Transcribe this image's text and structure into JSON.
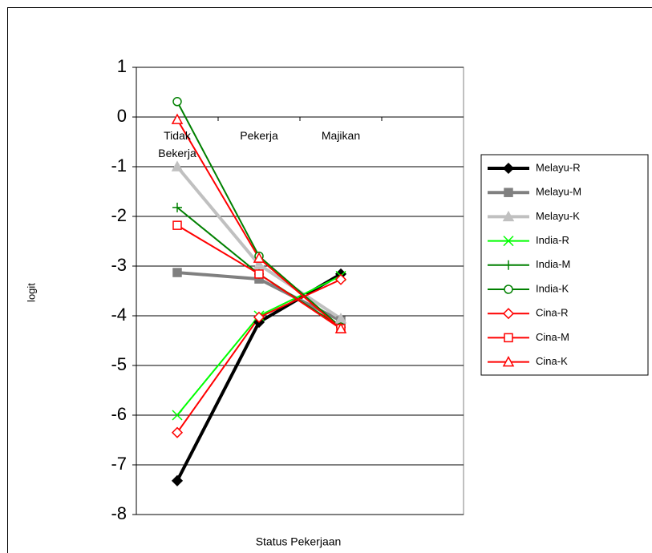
{
  "chart_data": {
    "type": "line",
    "x_label": "Status Pekerjaan",
    "y_label": "logit",
    "categories": [
      "Tidak Bekerja",
      "Pekerja",
      "Majikan",
      null
    ],
    "ylim": [
      -8,
      1
    ],
    "yticks": [
      -8,
      -7,
      -6,
      -5,
      -4,
      -3,
      -2,
      -1,
      0,
      1
    ],
    "grid": true,
    "legend": "right",
    "series": [
      {
        "name": "Melayu-R",
        "color": "#000000",
        "width": 4,
        "marker": "diamond",
        "marker_filled": true,
        "values": [
          -7.32,
          -4.13,
          -3.16,
          null
        ]
      },
      {
        "name": "Melayu-M",
        "color": "#808080",
        "width": 4,
        "marker": "square",
        "marker_filled": true,
        "values": [
          -3.13,
          -3.26,
          -4.1,
          null
        ]
      },
      {
        "name": "Melayu-K",
        "color": "#c0c0c0",
        "width": 4,
        "marker": "triangle",
        "marker_filled": true,
        "values": [
          -1.0,
          -2.97,
          -4.06,
          null
        ]
      },
      {
        "name": "India-R",
        "color": "#00ff00",
        "width": 2,
        "marker": "x",
        "marker_filled": true,
        "values": [
          -6.0,
          -4.0,
          -3.2,
          null
        ]
      },
      {
        "name": "India-M",
        "color": "#008000",
        "width": 2,
        "marker": "plus",
        "marker_filled": true,
        "values": [
          -1.82,
          -3.16,
          -4.23,
          null
        ]
      },
      {
        "name": "India-K",
        "color": "#008000",
        "width": 2,
        "marker": "circle",
        "marker_filled": false,
        "values": [
          0.31,
          -2.8,
          -4.23,
          null
        ]
      },
      {
        "name": "Cina-R",
        "color": "#ff0000",
        "width": 2,
        "marker": "diamond",
        "marker_filled": false,
        "values": [
          -6.35,
          -4.03,
          -3.27,
          null
        ]
      },
      {
        "name": "Cina-M",
        "color": "#ff0000",
        "width": 2,
        "marker": "square",
        "marker_filled": false,
        "values": [
          -2.18,
          -3.16,
          -4.26,
          null
        ]
      },
      {
        "name": "Cina-K",
        "color": "#ff0000",
        "width": 2,
        "marker": "triangle",
        "marker_filled": false,
        "values": [
          -0.05,
          -2.84,
          -4.26,
          null
        ]
      }
    ]
  }
}
